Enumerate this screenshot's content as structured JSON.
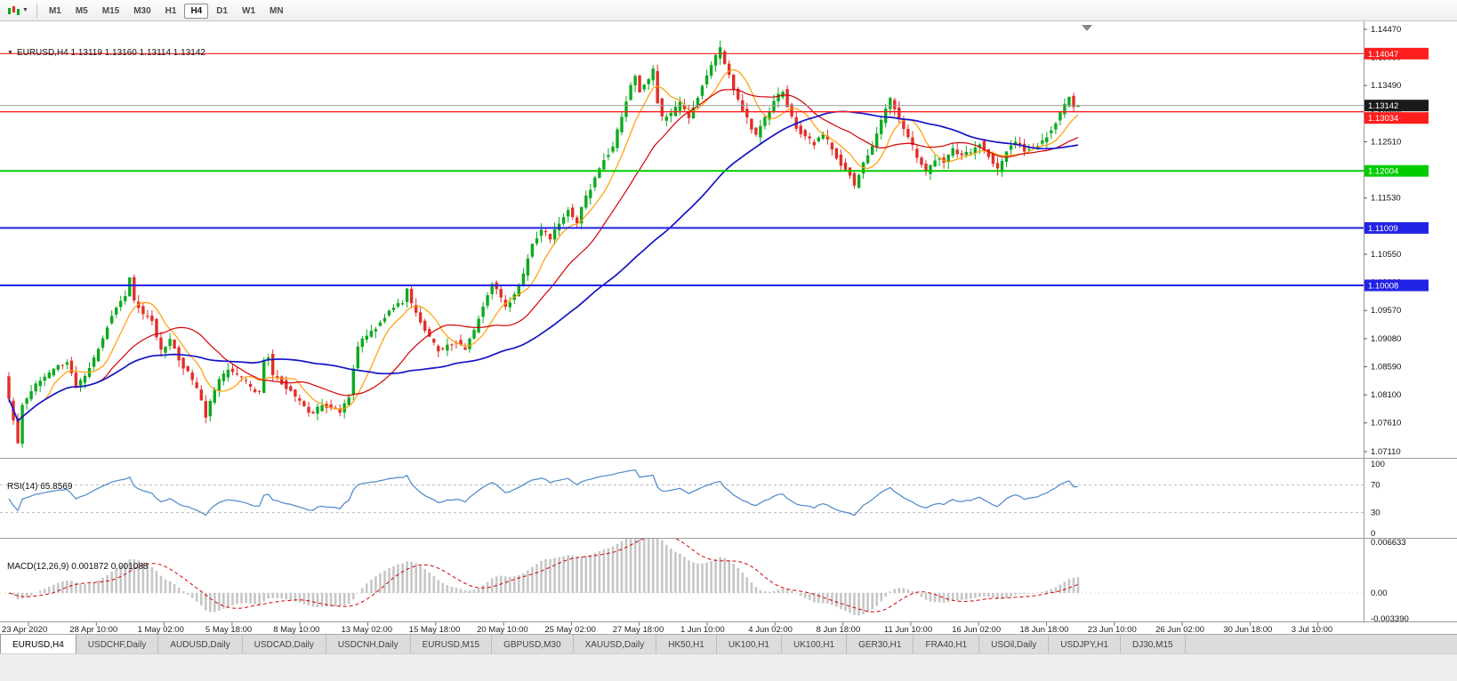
{
  "toolbar": {
    "timeframes": [
      "M1",
      "M5",
      "M15",
      "M30",
      "H1",
      "H4",
      "D1",
      "W1",
      "MN"
    ],
    "selected_timeframe": "H4"
  },
  "chart_title": {
    "symbol_line": "EURUSD,H4 1.13119 1.13160 1.13114 1.13142"
  },
  "chart_data": {
    "type": "candlestick",
    "symbol": "EURUSD",
    "timeframe": "H4",
    "last_bar": {
      "open": 1.13119,
      "high": 1.1316,
      "low": 1.13114,
      "close": 1.13142
    },
    "bars_total": 240,
    "price_path": [
      [
        0,
        1.0838
      ],
      [
        1,
        1.08
      ],
      [
        3,
        1.0729
      ],
      [
        4,
        1.0795
      ],
      [
        6,
        1.0818
      ],
      [
        9,
        1.084
      ],
      [
        12,
        1.0858
      ],
      [
        14,
        1.0868
      ],
      [
        16,
        1.0824
      ],
      [
        18,
        1.0842
      ],
      [
        20,
        1.0872
      ],
      [
        23,
        1.093
      ],
      [
        25,
        1.0962
      ],
      [
        27,
        1.0985
      ],
      [
        28,
        1.1012
      ],
      [
        29,
        1.0975
      ],
      [
        31,
        1.0948
      ],
      [
        33,
        1.094
      ],
      [
        35,
        1.0885
      ],
      [
        37,
        1.0905
      ],
      [
        39,
        1.0872
      ],
      [
        41,
        1.0848
      ],
      [
        43,
        1.082
      ],
      [
        45,
        1.0772
      ],
      [
        46,
        1.08
      ],
      [
        48,
        1.0835
      ],
      [
        50,
        1.0852
      ],
      [
        53,
        1.084
      ],
      [
        55,
        1.0822
      ],
      [
        57,
        1.0812
      ],
      [
        58,
        1.087
      ],
      [
        59,
        1.0878
      ],
      [
        60,
        1.0845
      ],
      [
        62,
        1.0832
      ],
      [
        64,
        1.0815
      ],
      [
        66,
        1.0798
      ],
      [
        68,
        1.078
      ],
      [
        69,
        1.0775
      ],
      [
        71,
        1.0795
      ],
      [
        73,
        1.0788
      ],
      [
        75,
        1.0782
      ],
      [
        77,
        1.0808
      ],
      [
        79,
        1.0898
      ],
      [
        81,
        1.0912
      ],
      [
        83,
        1.0928
      ],
      [
        85,
        1.0948
      ],
      [
        87,
        1.0962
      ],
      [
        89,
        1.0972
      ],
      [
        90,
        1.0992
      ],
      [
        91,
        1.0968
      ],
      [
        93,
        1.094
      ],
      [
        95,
        1.0908
      ],
      [
        97,
        1.0888
      ],
      [
        99,
        1.0895
      ],
      [
        101,
        1.0902
      ],
      [
        103,
        1.0892
      ],
      [
        105,
        1.092
      ],
      [
        107,
        1.0968
      ],
      [
        109,
        1.1002
      ],
      [
        111,
        1.0978
      ],
      [
        112,
        1.0962
      ],
      [
        114,
        1.0985
      ],
      [
        116,
        1.1022
      ],
      [
        118,
        1.1072
      ],
      [
        120,
        1.1098
      ],
      [
        122,
        1.1082
      ],
      [
        124,
        1.1108
      ],
      [
        126,
        1.1132
      ],
      [
        128,
        1.1112
      ],
      [
        130,
        1.1155
      ],
      [
        132,
        1.1185
      ],
      [
        134,
        1.1222
      ],
      [
        136,
        1.1242
      ],
      [
        138,
        1.1298
      ],
      [
        140,
        1.1348
      ],
      [
        141,
        1.1365
      ],
      [
        142,
        1.1338
      ],
      [
        144,
        1.1362
      ],
      [
        145,
        1.1378
      ],
      [
        146,
        1.1322
      ],
      [
        147,
        1.1292
      ],
      [
        149,
        1.1298
      ],
      [
        151,
        1.1318
      ],
      [
        153,
        1.1295
      ],
      [
        155,
        1.1332
      ],
      [
        157,
        1.1368
      ],
      [
        159,
        1.1398
      ],
      [
        160,
        1.1412
      ],
      [
        161,
        1.1388
      ],
      [
        163,
        1.1342
      ],
      [
        165,
        1.1305
      ],
      [
        167,
        1.1275
      ],
      [
        168,
        1.1262
      ],
      [
        170,
        1.1292
      ],
      [
        172,
        1.1322
      ],
      [
        174,
        1.134
      ],
      [
        175,
        1.1315
      ],
      [
        177,
        1.1278
      ],
      [
        179,
        1.1258
      ],
      [
        181,
        1.1248
      ],
      [
        183,
        1.1262
      ],
      [
        185,
        1.124
      ],
      [
        187,
        1.1212
      ],
      [
        189,
        1.1192
      ],
      [
        190,
        1.1175
      ],
      [
        192,
        1.1212
      ],
      [
        194,
        1.1242
      ],
      [
        196,
        1.1285
      ],
      [
        198,
        1.1325
      ],
      [
        199,
        1.1308
      ],
      [
        201,
        1.1272
      ],
      [
        203,
        1.1242
      ],
      [
        205,
        1.1212
      ],
      [
        206,
        1.1196
      ],
      [
        208,
        1.1222
      ],
      [
        210,
        1.1218
      ],
      [
        212,
        1.1238
      ],
      [
        214,
        1.1228
      ],
      [
        216,
        1.1235
      ],
      [
        218,
        1.1248
      ],
      [
        220,
        1.1228
      ],
      [
        222,
        1.1202
      ],
      [
        224,
        1.1238
      ],
      [
        226,
        1.1252
      ],
      [
        228,
        1.1238
      ],
      [
        230,
        1.1242
      ],
      [
        232,
        1.1252
      ],
      [
        234,
        1.1272
      ],
      [
        236,
        1.1302
      ],
      [
        238,
        1.1332
      ],
      [
        239,
        1.1314
      ]
    ],
    "y_axis": {
      "top": 1.1447,
      "bottom": 1.0711,
      "ticks": [
        "1.14470",
        "1.13980",
        "1.13490",
        "1.13000",
        "1.12510",
        "1.12020",
        "1.11530",
        "1.11040",
        "1.10550",
        "1.10060",
        "1.09570",
        "1.09080",
        "1.08590",
        "1.08100",
        "1.07610",
        "1.07110"
      ]
    },
    "x_axis": {
      "labels": [
        "23 Apr 2020",
        "28 Apr 10:00",
        "1 May 02:00",
        "5 May 18:00",
        "8 May 10:00",
        "13 May 02:00",
        "15 May 18:00",
        "20 May 10:00",
        "25 May 02:00",
        "27 May 18:00",
        "1 Jun 10:00",
        "4 Jun 02:00",
        "8 Jun 18:00",
        "11 Jun 10:00",
        "16 Jun 02:00",
        "18 Jun 18:00",
        "23 Jun 10:00",
        "26 Jun 02:00",
        "30 Jun 18:00",
        "3 Jul 10:00"
      ]
    },
    "horizontal_lines": [
      {
        "label": "1.14047",
        "price": 1.14047,
        "color": "#ff1e1e",
        "width": 1.2,
        "name": "resistance-line-upper-red"
      },
      {
        "label": "1.13034",
        "price": 1.13034,
        "color": "#ff1e1e",
        "width": 1.4,
        "name": "resistance-line-lower-red"
      },
      {
        "label": "1.12004",
        "price": 1.12004,
        "color": "#00cc00",
        "width": 2,
        "name": "support-line-green"
      },
      {
        "label": "1.11009",
        "price": 1.11009,
        "color": "#2222e6",
        "width": 2,
        "name": "support-line-blue-upper"
      },
      {
        "label": "1.10008",
        "price": 1.10008,
        "color": "#2222e6",
        "width": 2,
        "name": "support-line-blue-lower"
      }
    ],
    "current_price": {
      "label": "1.13142",
      "price": 1.13142,
      "badge_color": "#1a1a1a",
      "line_color": "#9a9a9a"
    },
    "moving_averages": [
      {
        "period": 8,
        "color": "#ff9d00",
        "name": "ma-fast-orange"
      },
      {
        "period": 21,
        "color": "#d40000",
        "name": "ma-mid-red"
      },
      {
        "period": 55,
        "color": "#1414c8",
        "name": "ma-slow-blue"
      }
    ],
    "rsi": {
      "text": "RSI(14) 65.8569",
      "label": "RSI(14)",
      "value": "65.8569",
      "period": 14,
      "levels": [
        "100",
        "70",
        "30",
        "0"
      ],
      "upper": 70,
      "lower": 30,
      "color": "#4a86c8"
    },
    "macd": {
      "text": "MACD(12,26,9) 0.001872 0.001088",
      "label": "MACD(12,26,9)",
      "values": "0.001872 0.001088",
      "fast": 12,
      "slow": 26,
      "signal": 9,
      "axis_labels": [
        "0.006633",
        "0.00",
        "-0.003390"
      ],
      "axis_max": 0.006633,
      "axis_min": -0.00339,
      "histogram_color": "#c6c6c6",
      "signal_color": "#d40000"
    },
    "candle_colors": {
      "up": "#0caa1f",
      "down": "#e22e29"
    }
  },
  "tabs": {
    "items": [
      "EURUSD,H4",
      "USDCHF,Daily",
      "AUDUSD,Daily",
      "USDCAD,Daily",
      "USDCNH,Daily",
      "EURUSD,M15",
      "GBPUSD,M30",
      "XAUUSD,Daily",
      "HK50,H1",
      "UK100,H1",
      "UK100,H1",
      "GER30,H1",
      "FRA40,H1",
      "USOil,Daily",
      "USDJPY,H1",
      "DJ30,M15"
    ],
    "active_index": 0
  }
}
